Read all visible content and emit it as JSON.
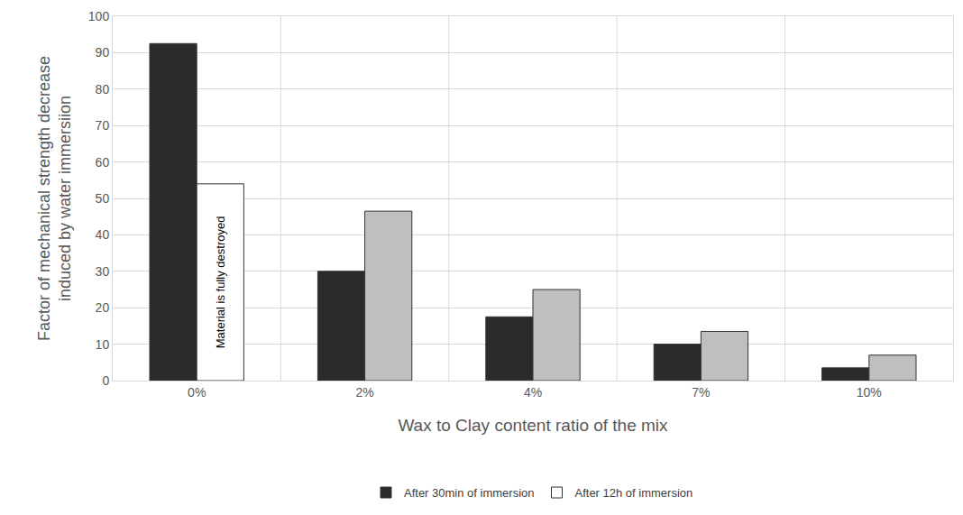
{
  "chart_data": {
    "type": "bar",
    "x_label": "Wax to Clay content ratio of the mix",
    "y_label": [
      "Factor of mechanical strength decrease",
      "induced by water immersiion"
    ],
    "categories": [
      "0%",
      "2%",
      "4%",
      "7%",
      "10%"
    ],
    "series": [
      {
        "name": "After 30min of immersion",
        "color": "#2b2b2b",
        "values": [
          92.5,
          30,
          17.5,
          10,
          3.5
        ]
      },
      {
        "name": "After 12h of immersion",
        "color": "#bfbfbf",
        "colors": [
          "#ffffff",
          "#bfbfbf",
          "#bfbfbf",
          "#bfbfbf",
          "#bfbfbf"
        ],
        "values": [
          54,
          46.5,
          25,
          13.5,
          7
        ]
      }
    ],
    "annotations": [
      {
        "text": "Material is fully destroyed",
        "category": "0%",
        "series": "After 12h of immersion"
      }
    ],
    "ylim": [
      0,
      100
    ],
    "yticks": [
      0,
      10,
      20,
      30,
      40,
      50,
      60,
      70,
      80,
      90,
      100
    ],
    "grid": true,
    "legend": "bottom"
  }
}
